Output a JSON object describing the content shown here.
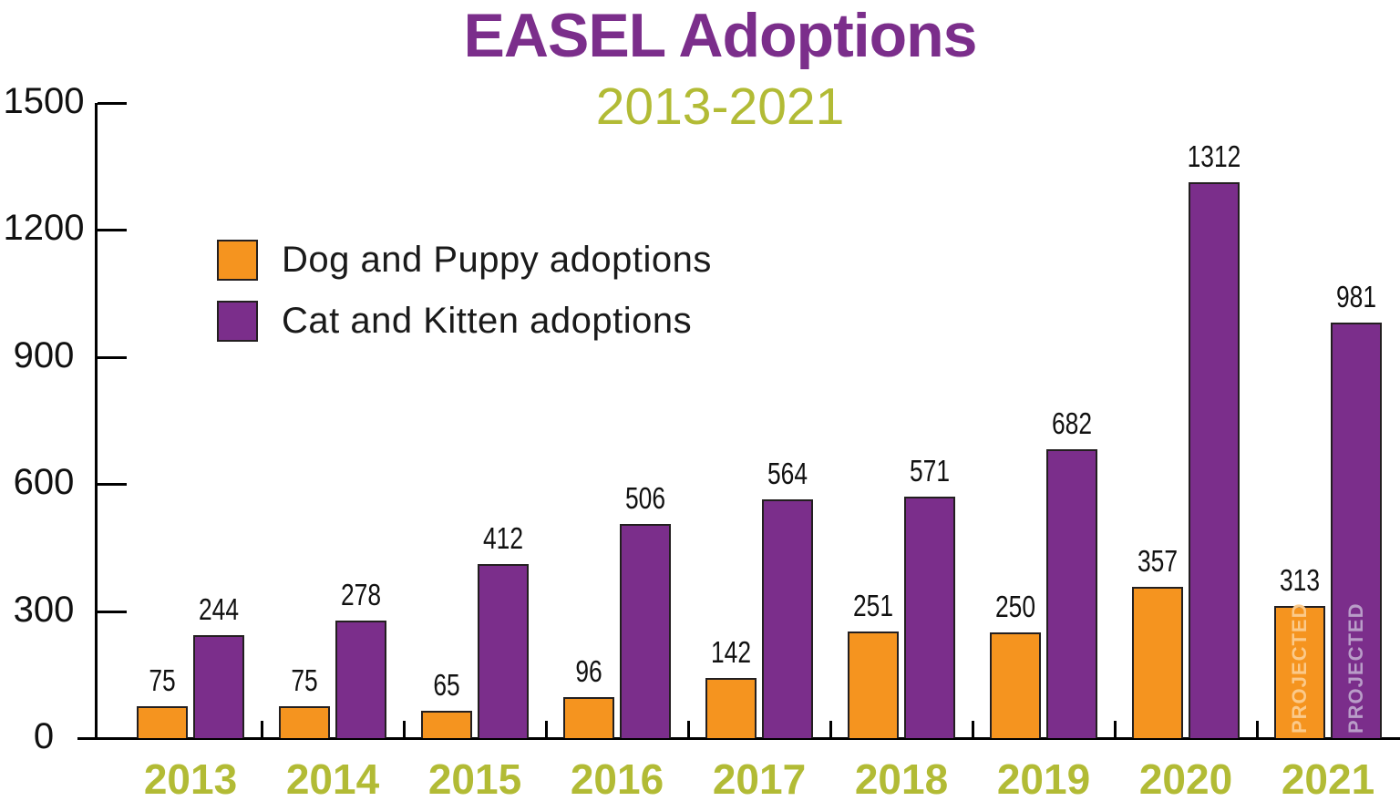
{
  "title": "EASEL Adoptions",
  "subtitle": "2013-2021",
  "legend": [
    {
      "label": "Dog and Puppy adoptions",
      "color": "#F5941F"
    },
    {
      "label": "Cat and Kitten adoptions",
      "color": "#7B2E8B"
    }
  ],
  "colors": {
    "title_purple": "#7B2E8B",
    "subtitle_olive": "#B2BB35",
    "bar_orange": "#F5941F",
    "bar_purple": "#7B2E8B",
    "bar_outline": "#231F20",
    "axis_black": "#000000",
    "year_olive": "#B2BB35",
    "projected_on_orange": "#FBCA8B",
    "projected_on_purple": "#B99DC8"
  },
  "projected_label": "PROJECTED",
  "chart_data": {
    "type": "bar",
    "title": "EASEL Adoptions",
    "subtitle": "2013-2021",
    "categories": [
      "2013",
      "2014",
      "2015",
      "2016",
      "2017",
      "2018",
      "2019",
      "2020",
      "2021"
    ],
    "series": [
      {
        "name": "Dog and Puppy adoptions",
        "color": "#F5941F",
        "values": [
          75,
          75,
          65,
          96,
          142,
          251,
          250,
          357,
          313
        ]
      },
      {
        "name": "Cat and Kitten adoptions",
        "color": "#7B2E8B",
        "values": [
          244,
          278,
          412,
          506,
          564,
          571,
          682,
          1312,
          981
        ]
      }
    ],
    "yticks": [
      0,
      300,
      600,
      900,
      1200,
      1500
    ],
    "ylim": [
      0,
      1500
    ],
    "grid": false,
    "legend_position": "upper-left-inside",
    "value_labels": "above each bar",
    "projected_years": [
      "2021"
    ],
    "annotations": "PROJECTED written vertically inside both 2021 bars"
  }
}
